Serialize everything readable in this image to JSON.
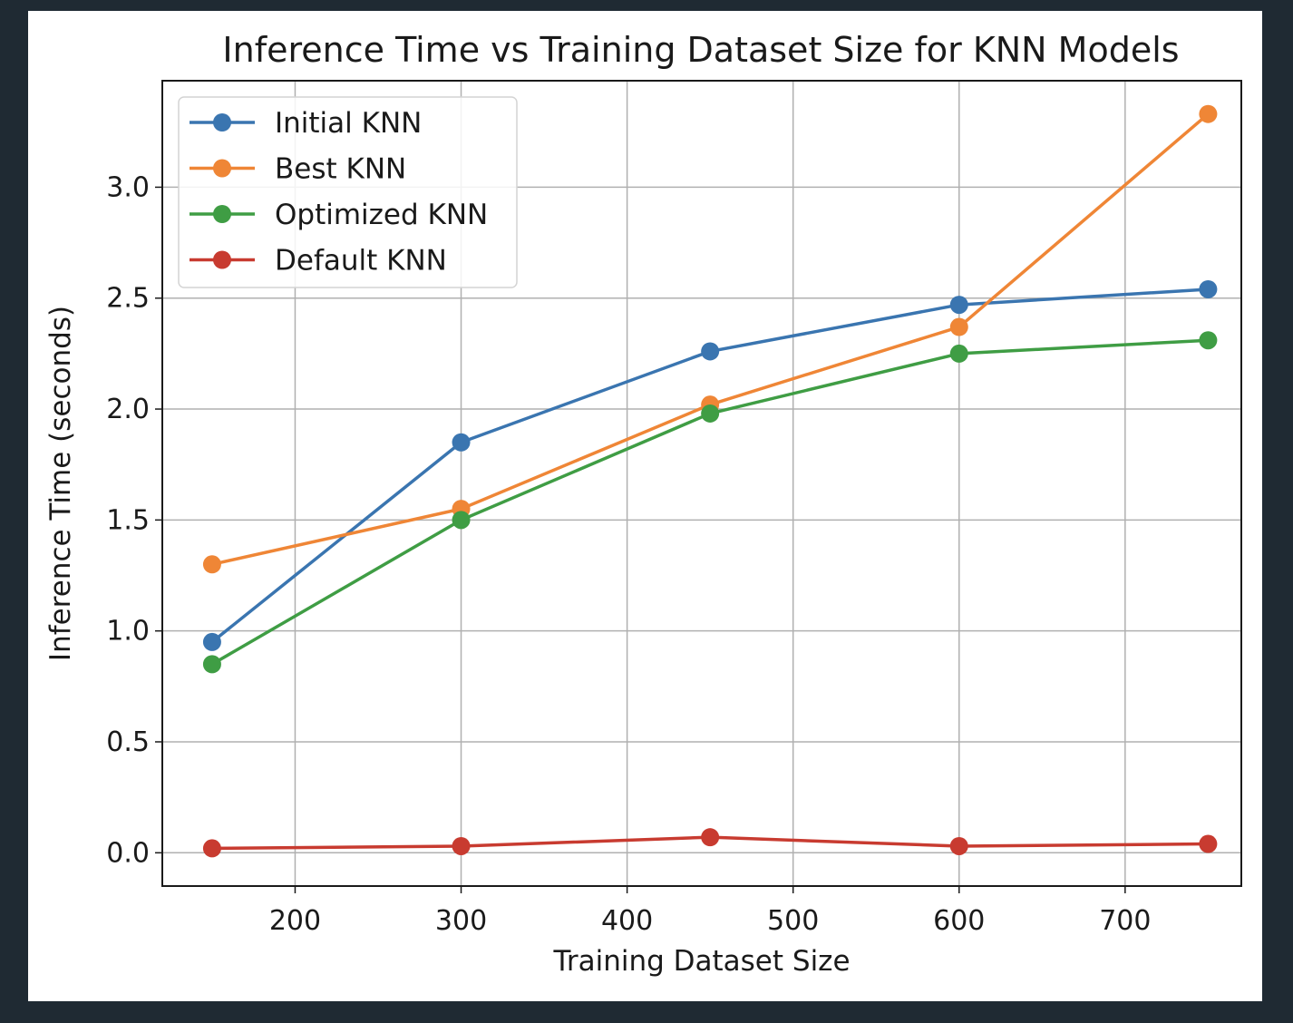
{
  "chart_data": {
    "type": "line",
    "title": "Inference Time vs Training Dataset Size for KNN Models",
    "xlabel": "Training Dataset Size",
    "ylabel": "Inference Time (seconds)",
    "xlim": [
      120,
      770
    ],
    "ylim": [
      -0.15,
      3.48
    ],
    "xticks": [
      200,
      300,
      400,
      500,
      600,
      700
    ],
    "xtick_labels": [
      "200",
      "300",
      "400",
      "500",
      "600",
      "700"
    ],
    "yticks": [
      0.0,
      0.5,
      1.0,
      1.5,
      2.0,
      2.5,
      3.0
    ],
    "ytick_labels": [
      "0.0",
      "0.5",
      "1.0",
      "1.5",
      "2.0",
      "2.5",
      "3.0"
    ],
    "grid": true,
    "legend_position": "upper-left",
    "x": [
      150,
      300,
      450,
      600,
      750
    ],
    "series": [
      {
        "name": "Initial KNN",
        "color": "#3a75b0",
        "values": [
          0.95,
          1.85,
          2.26,
          2.47,
          2.54
        ]
      },
      {
        "name": "Best KNN",
        "color": "#ef8636",
        "values": [
          1.3,
          1.55,
          2.02,
          2.37,
          3.33
        ]
      },
      {
        "name": "Optimized KNN",
        "color": "#3f9d44",
        "values": [
          0.85,
          1.5,
          1.98,
          2.25,
          2.31
        ]
      },
      {
        "name": "Default KNN",
        "color": "#c83b30",
        "values": [
          0.02,
          0.03,
          0.07,
          0.03,
          0.04
        ]
      }
    ]
  }
}
